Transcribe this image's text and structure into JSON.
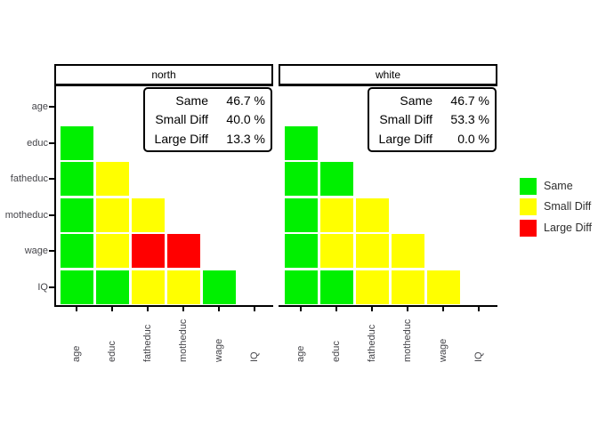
{
  "chart_data": {
    "type": "heatmap",
    "title": "",
    "variables": [
      "age",
      "educ",
      "fatheduc",
      "motheduc",
      "wage",
      "IQ"
    ],
    "x_axis": {
      "labels": [
        "age",
        "educ",
        "fatheduc",
        "motheduc",
        "wage",
        "IQ"
      ],
      "rotation": 90
    },
    "y_axis": {
      "labels": [
        "age",
        "educ",
        "fatheduc",
        "motheduc",
        "wage",
        "IQ"
      ]
    },
    "categories": {
      "same": "Same",
      "small_diff": "Small Diff",
      "large_diff": "Large Diff"
    },
    "colors": {
      "same": "#00F000",
      "small_diff": "#FFFF00",
      "large_diff": "#FF0000"
    },
    "panels": [
      {
        "title": "north",
        "stats": [
          {
            "label": "Same",
            "value": "46.7 %"
          },
          {
            "label": "Small Diff",
            "value": "40.0 %"
          },
          {
            "label": "Large Diff",
            "value": "13.3 %"
          }
        ],
        "rows": [
          {
            "var": "educ",
            "cells": [
              "same"
            ]
          },
          {
            "var": "fatheduc",
            "cells": [
              "same",
              "small_diff"
            ]
          },
          {
            "var": "motheduc",
            "cells": [
              "same",
              "small_diff",
              "small_diff"
            ]
          },
          {
            "var": "wage",
            "cells": [
              "same",
              "small_diff",
              "large_diff",
              "large_diff"
            ]
          },
          {
            "var": "IQ",
            "cells": [
              "same",
              "same",
              "small_diff",
              "small_diff",
              "same"
            ]
          }
        ]
      },
      {
        "title": "white",
        "stats": [
          {
            "label": "Same",
            "value": "46.7 %"
          },
          {
            "label": "Small Diff",
            "value": "53.3 %"
          },
          {
            "label": "Large Diff",
            "value": "0.0 %"
          }
        ],
        "rows": [
          {
            "var": "educ",
            "cells": [
              "same"
            ]
          },
          {
            "var": "fatheduc",
            "cells": [
              "same",
              "same"
            ]
          },
          {
            "var": "motheduc",
            "cells": [
              "same",
              "small_diff",
              "small_diff"
            ]
          },
          {
            "var": "wage",
            "cells": [
              "same",
              "small_diff",
              "small_diff",
              "small_diff"
            ]
          },
          {
            "var": "IQ",
            "cells": [
              "same",
              "same",
              "small_diff",
              "small_diff",
              "small_diff"
            ]
          }
        ]
      }
    ],
    "legend": {
      "position": "right",
      "items": [
        {
          "key": "same",
          "label": "Same"
        },
        {
          "key": "small_diff",
          "label": "Small Diff"
        },
        {
          "key": "large_diff",
          "label": "Large Diff"
        }
      ]
    }
  }
}
